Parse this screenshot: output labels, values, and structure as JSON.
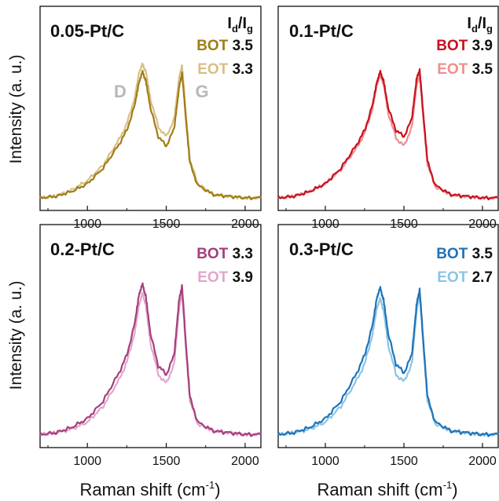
{
  "figure": {
    "ylabel": "Intensity (a. u.)",
    "xlabel_main": "Raman shift (cm",
    "xlabel_sup": "-1",
    "xlabel_end": ")",
    "ratio_label_main": "I",
    "ratio_label_sub1": "d",
    "ratio_label_slash": "/I",
    "ratio_label_sub2": "g",
    "peak_D": "D",
    "peak_G": "G"
  },
  "chart_data": [
    {
      "type": "line",
      "title": "0.05-Pt/C",
      "xlim": [
        700,
        2100
      ],
      "xticks": [
        "1000",
        "1500",
        "2000"
      ],
      "series": [
        {
          "name": "BOT",
          "ratio": "3.5",
          "color": "#a07d16",
          "x": [
            700,
            800,
            900,
            1000,
            1100,
            1200,
            1250,
            1300,
            1330,
            1350,
            1370,
            1400,
            1450,
            1500,
            1550,
            1580,
            1600,
            1620,
            1650,
            1700,
            1800,
            1900,
            2000,
            2100
          ],
          "y": [
            0.03,
            0.04,
            0.07,
            0.12,
            0.22,
            0.37,
            0.46,
            0.62,
            0.78,
            0.83,
            0.78,
            0.6,
            0.42,
            0.36,
            0.47,
            0.72,
            0.83,
            0.58,
            0.25,
            0.11,
            0.05,
            0.04,
            0.03,
            0.03
          ]
        },
        {
          "name": "EOT",
          "ratio": "3.3",
          "color": "#d8be86",
          "x": [
            700,
            800,
            900,
            1000,
            1100,
            1200,
            1250,
            1300,
            1330,
            1350,
            1370,
            1400,
            1450,
            1500,
            1550,
            1580,
            1600,
            1620,
            1650,
            1700,
            1800,
            1900,
            2000,
            2100
          ],
          "y": [
            0.03,
            0.04,
            0.08,
            0.14,
            0.24,
            0.4,
            0.5,
            0.67,
            0.84,
            0.88,
            0.84,
            0.66,
            0.48,
            0.42,
            0.53,
            0.78,
            0.88,
            0.62,
            0.27,
            0.12,
            0.05,
            0.04,
            0.03,
            0.03
          ]
        }
      ]
    },
    {
      "type": "line",
      "title": "0.1-Pt/C",
      "xlim": [
        700,
        2100
      ],
      "xticks": [
        "1000",
        "1500",
        "2000"
      ],
      "series": [
        {
          "name": "BOT",
          "ratio": "3.9",
          "color": "#c8111e",
          "x": [
            700,
            800,
            900,
            1000,
            1100,
            1200,
            1250,
            1300,
            1330,
            1350,
            1370,
            1400,
            1450,
            1500,
            1550,
            1580,
            1600,
            1620,
            1650,
            1700,
            1800,
            1900,
            2000,
            2100
          ],
          "y": [
            0.03,
            0.04,
            0.07,
            0.12,
            0.22,
            0.37,
            0.46,
            0.62,
            0.78,
            0.83,
            0.78,
            0.6,
            0.46,
            0.42,
            0.53,
            0.78,
            0.85,
            0.6,
            0.26,
            0.11,
            0.05,
            0.04,
            0.03,
            0.03
          ]
        },
        {
          "name": "EOT",
          "ratio": "3.5",
          "color": "#ec8f8f",
          "x": [
            700,
            800,
            900,
            1000,
            1100,
            1200,
            1250,
            1300,
            1330,
            1350,
            1370,
            1400,
            1450,
            1500,
            1550,
            1580,
            1600,
            1620,
            1650,
            1700,
            1800,
            1900,
            2000,
            2100
          ],
          "y": [
            0.03,
            0.04,
            0.07,
            0.12,
            0.21,
            0.35,
            0.44,
            0.6,
            0.76,
            0.81,
            0.76,
            0.57,
            0.41,
            0.36,
            0.48,
            0.74,
            0.81,
            0.57,
            0.24,
            0.1,
            0.05,
            0.04,
            0.03,
            0.03
          ]
        }
      ]
    },
    {
      "type": "line",
      "title": "0.2-Pt/C",
      "xlim": [
        700,
        2100
      ],
      "xticks": [
        "1000",
        "1500",
        "2000"
      ],
      "series": [
        {
          "name": "BOT",
          "ratio": "3.3",
          "color": "#a63e7b",
          "x": [
            700,
            800,
            900,
            1000,
            1100,
            1200,
            1250,
            1300,
            1330,
            1350,
            1370,
            1400,
            1450,
            1500,
            1550,
            1580,
            1600,
            1620,
            1650,
            1700,
            1800,
            1900,
            2000,
            2100
          ],
          "y": [
            0.03,
            0.04,
            0.07,
            0.12,
            0.22,
            0.38,
            0.48,
            0.66,
            0.84,
            0.88,
            0.82,
            0.6,
            0.42,
            0.37,
            0.48,
            0.78,
            0.88,
            0.6,
            0.24,
            0.1,
            0.05,
            0.04,
            0.03,
            0.03
          ]
        },
        {
          "name": "EOT",
          "ratio": "3.9",
          "color": "#e0a6cc",
          "x": [
            700,
            800,
            900,
            1000,
            1100,
            1200,
            1250,
            1300,
            1330,
            1350,
            1370,
            1400,
            1450,
            1500,
            1550,
            1580,
            1600,
            1620,
            1650,
            1700,
            1800,
            1900,
            2000,
            2100
          ],
          "y": [
            0.03,
            0.04,
            0.06,
            0.1,
            0.19,
            0.34,
            0.44,
            0.61,
            0.78,
            0.83,
            0.77,
            0.55,
            0.37,
            0.32,
            0.43,
            0.73,
            0.84,
            0.57,
            0.22,
            0.09,
            0.05,
            0.04,
            0.03,
            0.03
          ]
        }
      ]
    },
    {
      "type": "line",
      "title": "0.3-Pt/C",
      "xlim": [
        700,
        2100
      ],
      "xticks": [
        "1000",
        "1500",
        "2000"
      ],
      "series": [
        {
          "name": "BOT",
          "ratio": "3.5",
          "color": "#1f73b8",
          "x": [
            700,
            800,
            900,
            1000,
            1100,
            1200,
            1250,
            1300,
            1330,
            1350,
            1370,
            1400,
            1450,
            1500,
            1550,
            1580,
            1600,
            1620,
            1650,
            1700,
            1800,
            1900,
            2000,
            2100
          ],
          "y": [
            0.03,
            0.04,
            0.07,
            0.12,
            0.22,
            0.38,
            0.48,
            0.65,
            0.82,
            0.86,
            0.8,
            0.6,
            0.43,
            0.38,
            0.48,
            0.76,
            0.86,
            0.6,
            0.24,
            0.1,
            0.05,
            0.04,
            0.03,
            0.03
          ]
        },
        {
          "name": "EOT",
          "ratio": "2.7",
          "color": "#8cc4e6",
          "x": [
            700,
            800,
            900,
            1000,
            1100,
            1200,
            1250,
            1300,
            1330,
            1350,
            1370,
            1400,
            1450,
            1500,
            1550,
            1580,
            1600,
            1620,
            1650,
            1700,
            1800,
            1900,
            2000,
            2100
          ],
          "y": [
            0.03,
            0.04,
            0.06,
            0.1,
            0.19,
            0.34,
            0.43,
            0.6,
            0.76,
            0.8,
            0.74,
            0.54,
            0.37,
            0.33,
            0.43,
            0.72,
            0.83,
            0.57,
            0.22,
            0.09,
            0.05,
            0.04,
            0.03,
            0.03
          ]
        }
      ]
    }
  ]
}
